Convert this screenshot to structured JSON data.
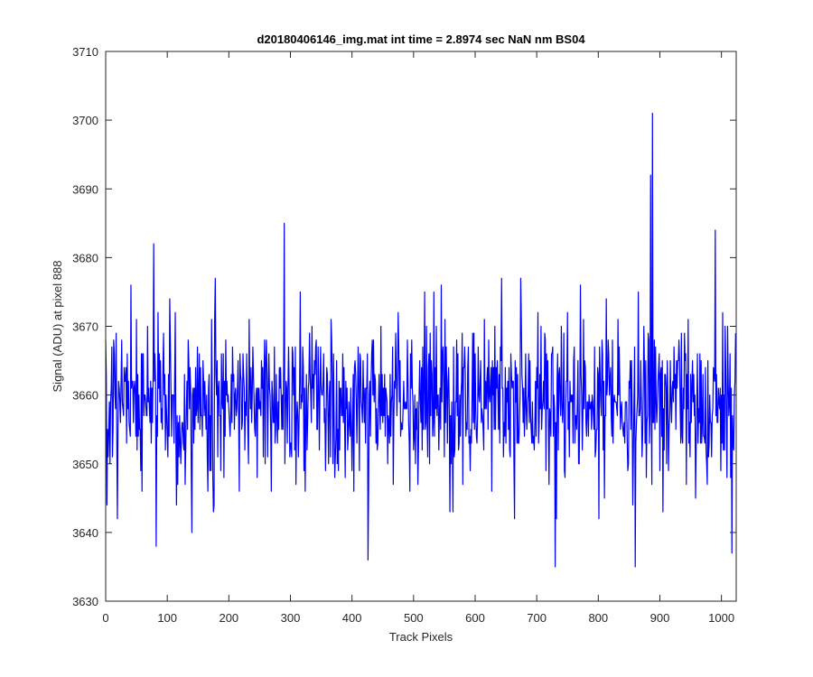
{
  "chart_data": {
    "type": "line",
    "title": "d20180406146_img.mat int time = 2.8974 sec  NaN nm BS04",
    "xlabel": "Track Pixels",
    "ylabel": "Signal (ADU) at pixel 888",
    "xlim": [
      0,
      1024
    ],
    "ylim": [
      3630,
      3710
    ],
    "xticks": [
      0,
      100,
      200,
      300,
      400,
      500,
      600,
      700,
      800,
      900,
      1000
    ],
    "yticks": [
      3630,
      3640,
      3650,
      3660,
      3670,
      3680,
      3690,
      3700,
      3710
    ],
    "grid": false,
    "series": [
      {
        "color": "#0000ff",
        "n_points": 1024,
        "baseline": 3659,
        "noise_sd": 6,
        "spikes": [
          {
            "x": 78,
            "y": 3682
          },
          {
            "x": 82,
            "y": 3638
          },
          {
            "x": 140,
            "y": 3640
          },
          {
            "x": 290,
            "y": 3685
          },
          {
            "x": 426,
            "y": 3636
          },
          {
            "x": 730,
            "y": 3635
          },
          {
            "x": 860,
            "y": 3635
          },
          {
            "x": 885,
            "y": 3692
          },
          {
            "x": 888,
            "y": 3701
          },
          {
            "x": 990,
            "y": 3684
          },
          {
            "x": 1017,
            "y": 3637
          }
        ]
      }
    ]
  }
}
